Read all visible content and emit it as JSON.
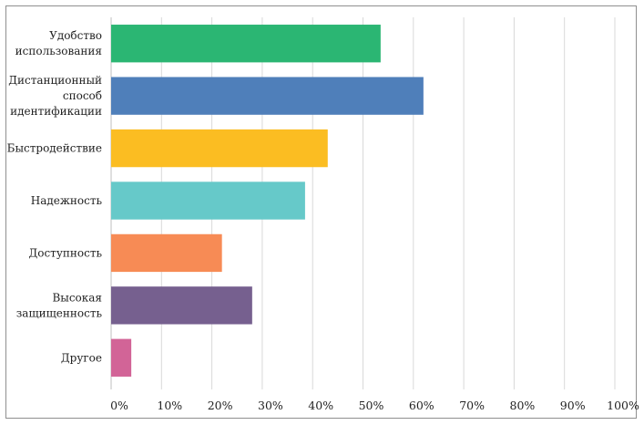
{
  "chart_data": {
    "type": "bar",
    "orientation": "horizontal",
    "title": "",
    "xlabel": "",
    "ylabel": "",
    "xlim": [
      0,
      100
    ],
    "x_ticks": [
      "0%",
      "10%",
      "20%",
      "30%",
      "40%",
      "50%",
      "60%",
      "70%",
      "80%",
      "90%",
      "100%"
    ],
    "grid": true,
    "legend": "none",
    "categories": [
      [
        "Удобство",
        "использования"
      ],
      [
        "Дистанционный",
        "способ",
        "идентификации"
      ],
      [
        "Быстродействие"
      ],
      [
        "Надежность"
      ],
      [
        "Доступность"
      ],
      [
        "Высокая",
        "защищенность"
      ],
      [
        "Другое"
      ]
    ],
    "values": [
      53.5,
      62,
      43,
      38.5,
      22,
      28,
      4
    ],
    "colors": [
      "#2bb673",
      "#4f7fba",
      "#fbbd22",
      "#66c9c9",
      "#f78b55",
      "#76608f",
      "#d26497"
    ]
  }
}
